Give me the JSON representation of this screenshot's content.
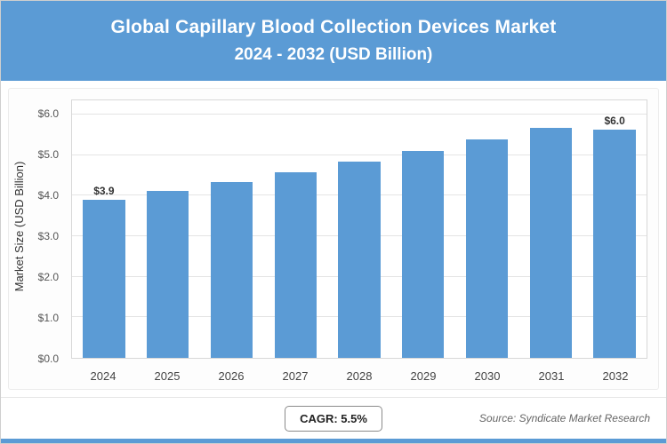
{
  "header": {
    "title_line1": "Global Capillary Blood Collection Devices Market",
    "title_line2": "2024 - 2032 (USD Billion)"
  },
  "chart_data": {
    "type": "bar",
    "title": "Global Capillary Blood Collection Devices Market 2024 - 2032 (USD Billion)",
    "categories": [
      "2024",
      "2025",
      "2026",
      "2027",
      "2028",
      "2029",
      "2030",
      "2031",
      "2032"
    ],
    "values": [
      3.9,
      4.11,
      4.34,
      4.58,
      4.83,
      5.1,
      5.38,
      5.67,
      5.98
    ],
    "bar_labels": [
      "$3.9",
      "",
      "",
      "",
      "",
      "",
      "",
      "",
      "$6.0"
    ],
    "xlabel": "",
    "ylabel": "Market Size (USD Billion)",
    "ylim": [
      0,
      6.0
    ],
    "ytick_step": 1.0,
    "ytick_labels": [
      "$0.0",
      "$1.0",
      "$2.0",
      "$3.0",
      "$4.0",
      "$5.0",
      "$6.0"
    ],
    "bar_color": "#5b9bd5",
    "grid": true,
    "legend_position": "none"
  },
  "footer": {
    "cagr_label": "CAGR: 5.5%",
    "source": "Source: Syndicate Market Research"
  }
}
